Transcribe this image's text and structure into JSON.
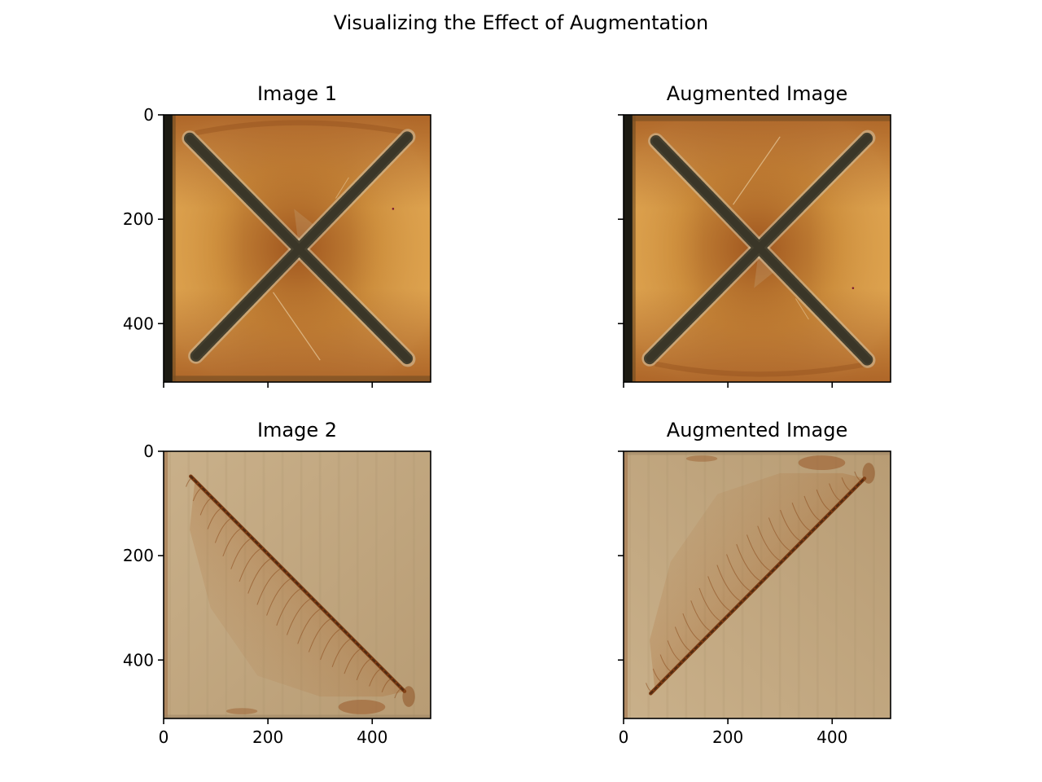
{
  "figure": {
    "title": "Visualizing the Effect of Augmentation"
  },
  "chart_data": [
    {
      "type": "image",
      "title": "Image 1",
      "content": "rust-x",
      "flip": "none",
      "xlim": [
        0,
        512
      ],
      "ylim": [
        512,
        0
      ],
      "xticks": [
        0,
        200,
        400
      ],
      "yticks": [
        0,
        200,
        400
      ],
      "xtick_labels": [
        "",
        "",
        ""
      ],
      "ytick_labels": [
        "0",
        "200",
        "400"
      ]
    },
    {
      "type": "image",
      "title": "Augmented Image",
      "content": "rust-x",
      "flip": "vertical",
      "xlim": [
        0,
        512
      ],
      "ylim": [
        512,
        0
      ],
      "xticks": [
        0,
        200,
        400
      ],
      "yticks": [
        0,
        200,
        400
      ],
      "xtick_labels": [
        "",
        "",
        ""
      ],
      "ytick_labels": [
        "",
        "",
        ""
      ]
    },
    {
      "type": "image",
      "title": "Image 2",
      "content": "diagonal-rust",
      "flip": "none",
      "xlim": [
        0,
        512
      ],
      "ylim": [
        512,
        0
      ],
      "xticks": [
        0,
        200,
        400
      ],
      "yticks": [
        0,
        200,
        400
      ],
      "xtick_labels": [
        "0",
        "200",
        "400"
      ],
      "ytick_labels": [
        "0",
        "200",
        "400"
      ]
    },
    {
      "type": "image",
      "title": "Augmented Image",
      "content": "diagonal-rust",
      "flip": "vertical",
      "xlim": [
        0,
        512
      ],
      "ylim": [
        512,
        0
      ],
      "xticks": [
        0,
        200,
        400
      ],
      "yticks": [
        0,
        200,
        400
      ],
      "xtick_labels": [
        "0",
        "200",
        "400"
      ],
      "ytick_labels": [
        "",
        "",
        ""
      ]
    }
  ]
}
